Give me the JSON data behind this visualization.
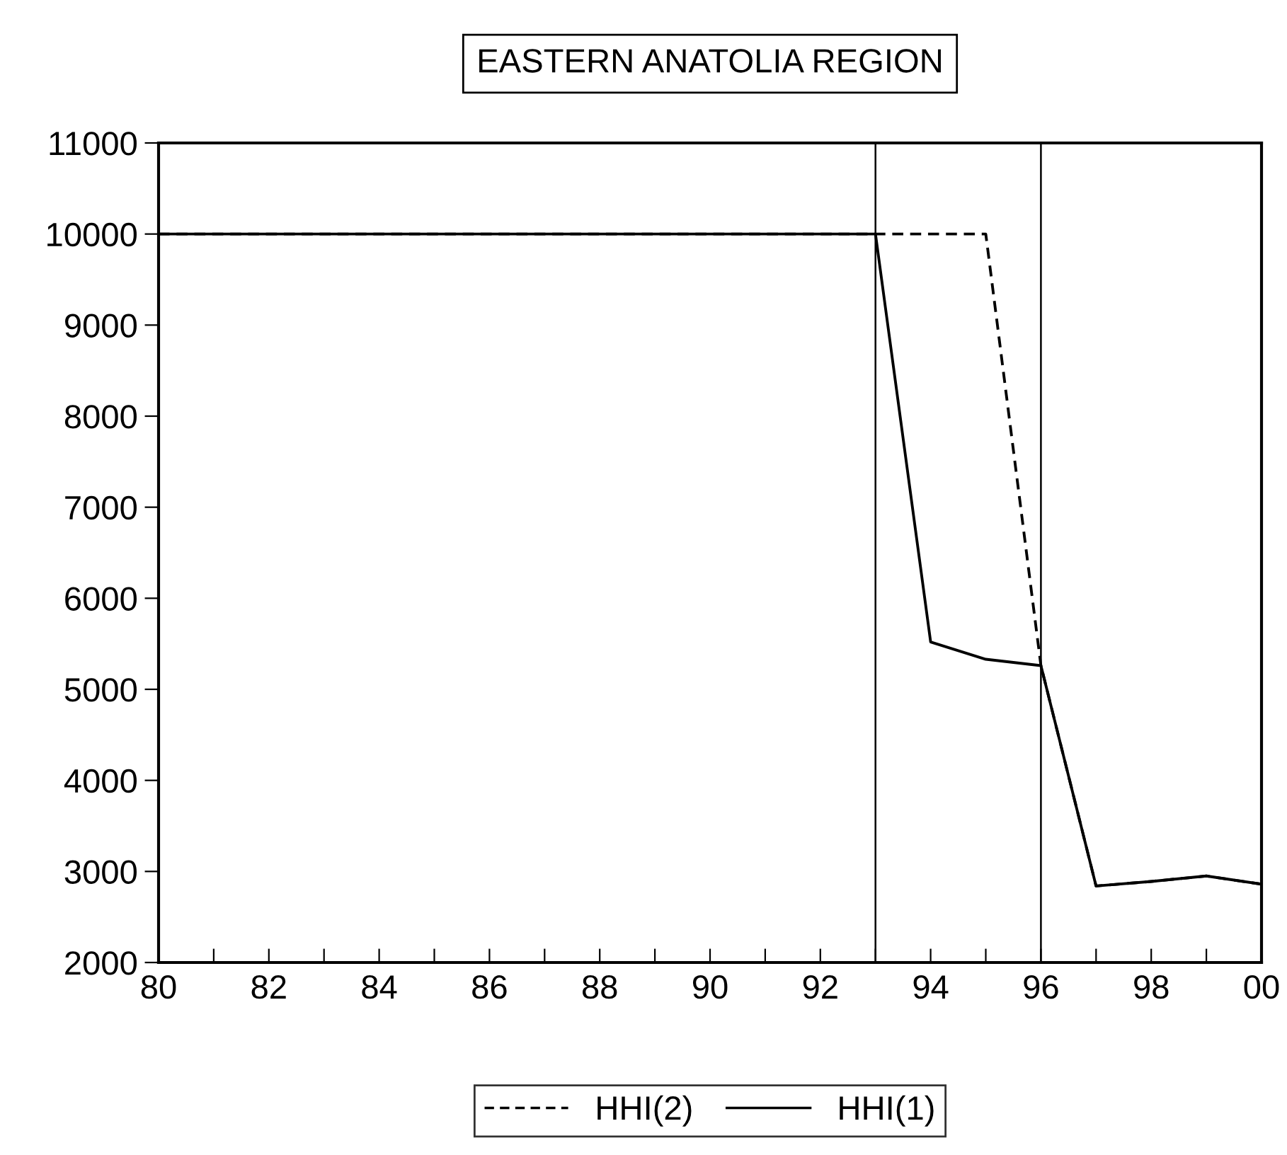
{
  "chart_data": {
    "type": "line",
    "title": "EASTERN ANATOLIA REGION",
    "x": [
      1980,
      1981,
      1982,
      1983,
      1984,
      1985,
      1986,
      1987,
      1988,
      1989,
      1990,
      1991,
      1992,
      1993,
      1994,
      1995,
      1996,
      1997,
      1998,
      1999,
      2000
    ],
    "series": [
      {
        "name": "HHI(2)",
        "color": "#000000",
        "line_style": "dashed",
        "values": [
          10000,
          10000,
          10000,
          10000,
          10000,
          10000,
          10000,
          10000,
          10000,
          10000,
          10000,
          10000,
          10000,
          10000,
          10000,
          10000,
          5260,
          2840,
          2890,
          2950,
          2860
        ]
      },
      {
        "name": "HHI(1)",
        "color": "#000000",
        "line_style": "solid",
        "values": [
          10000,
          10000,
          10000,
          10000,
          10000,
          10000,
          10000,
          10000,
          10000,
          10000,
          10000,
          10000,
          10000,
          10000,
          5520,
          5330,
          5260,
          2840,
          2890,
          2950,
          2860
        ]
      }
    ],
    "xlim": [
      1980,
      2000
    ],
    "xticks": [
      {
        "value": 1980,
        "label": "80"
      },
      {
        "value": 1981,
        "label": null
      },
      {
        "value": 1982,
        "label": "82"
      },
      {
        "value": 1983,
        "label": null
      },
      {
        "value": 1984,
        "label": "84"
      },
      {
        "value": 1985,
        "label": null
      },
      {
        "value": 1986,
        "label": "86"
      },
      {
        "value": 1987,
        "label": null
      },
      {
        "value": 1988,
        "label": "88"
      },
      {
        "value": 1989,
        "label": null
      },
      {
        "value": 1990,
        "label": "90"
      },
      {
        "value": 1991,
        "label": null
      },
      {
        "value": 1992,
        "label": "92"
      },
      {
        "value": 1993,
        "label": null
      },
      {
        "value": 1994,
        "label": "94"
      },
      {
        "value": 1995,
        "label": null
      },
      {
        "value": 1996,
        "label": "96"
      },
      {
        "value": 1997,
        "label": null
      },
      {
        "value": 1998,
        "label": "98"
      },
      {
        "value": 1999,
        "label": null
      },
      {
        "value": 2000,
        "label": "00"
      }
    ],
    "ylim": [
      2000,
      11000
    ],
    "yticks": [
      2000,
      3000,
      4000,
      5000,
      6000,
      7000,
      8000,
      9000,
      10000,
      11000
    ],
    "ref_lines": [
      {
        "axis": "x",
        "value": 1993,
        "color": "#000000"
      },
      {
        "axis": "x",
        "value": 1996,
        "color": "#000000"
      }
    ],
    "grid": false,
    "legend": "bottom",
    "marker": "none"
  }
}
